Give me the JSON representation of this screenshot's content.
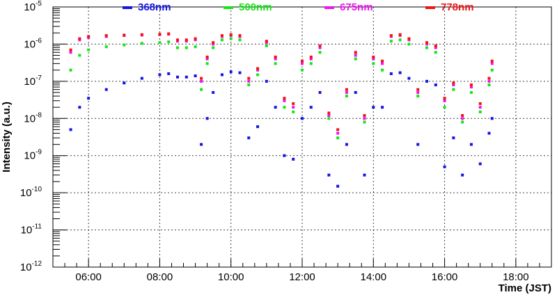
{
  "chart_data": {
    "type": "scatter",
    "title": "",
    "xlabel": "Time (JST)",
    "ylabel": "Intensity (a.u.)",
    "y_scale": "log",
    "xlim": [
      "05:00",
      "19:00"
    ],
    "ylim": [
      1e-12,
      1e-05
    ],
    "x_tick_labels": [
      "06:00",
      "08:00",
      "10:00",
      "12:00",
      "14:00",
      "16:00",
      "18:00"
    ],
    "y_tick_labels": [
      {
        "base": "10",
        "exp": "-12"
      },
      {
        "base": "10",
        "exp": "-11"
      },
      {
        "base": "10",
        "exp": "-10"
      },
      {
        "base": "10",
        "exp": "-9"
      },
      {
        "base": "10",
        "exp": "-8"
      },
      {
        "base": "10",
        "exp": "-7"
      },
      {
        "base": "10",
        "exp": "-6"
      },
      {
        "base": "10",
        "exp": "-5"
      }
    ],
    "grid": true,
    "legend_position": "top",
    "series": [
      {
        "name": "368nm",
        "color": "#1414e6",
        "x": [
          "05:30",
          "05:45",
          "06:00",
          "06:30",
          "07:00",
          "07:30",
          "08:00",
          "08:15",
          "08:30",
          "08:45",
          "09:00",
          "09:10",
          "09:20",
          "09:30",
          "09:45",
          "10:00",
          "10:15",
          "10:30",
          "10:45",
          "11:00",
          "11:15",
          "11:30",
          "11:45",
          "12:00",
          "12:15",
          "12:30",
          "12:45",
          "13:00",
          "13:15",
          "13:30",
          "13:45",
          "14:00",
          "14:15",
          "14:30",
          "14:45",
          "15:00",
          "15:15",
          "15:30",
          "15:45",
          "16:00",
          "16:15",
          "16:30",
          "16:45",
          "17:00",
          "17:15",
          "17:20"
        ],
        "y": [
          5e-09,
          2e-08,
          3.5e-08,
          6e-08,
          9e-08,
          1.2e-07,
          1.5e-07,
          1.6e-07,
          1.3e-07,
          1.3e-07,
          1.4e-07,
          2e-09,
          1e-08,
          5e-08,
          1.5e-07,
          1.8e-07,
          1.7e-07,
          3e-09,
          6e-09,
          1e-07,
          2e-08,
          1e-09,
          8e-10,
          1e-08,
          2e-08,
          5e-08,
          3e-10,
          1.5e-10,
          2e-09,
          5e-08,
          3e-10,
          2e-08,
          2e-08,
          1.6e-07,
          1.7e-07,
          1.2e-07,
          2e-09,
          1e-07,
          8e-08,
          5e-10,
          3e-09,
          3e-10,
          2e-09,
          6e-10,
          4e-09,
          1e-08
        ]
      },
      {
        "name": "500nm",
        "color": "#14e614",
        "x": [
          "05:30",
          "05:45",
          "06:00",
          "06:30",
          "07:00",
          "07:30",
          "08:00",
          "08:15",
          "08:30",
          "08:45",
          "09:00",
          "09:10",
          "09:20",
          "09:30",
          "09:45",
          "10:00",
          "10:15",
          "10:30",
          "10:45",
          "11:00",
          "11:15",
          "11:30",
          "11:45",
          "12:00",
          "12:15",
          "12:30",
          "12:45",
          "13:00",
          "13:15",
          "13:30",
          "13:45",
          "14:00",
          "14:15",
          "14:30",
          "14:45",
          "15:00",
          "15:15",
          "15:30",
          "15:45",
          "16:00",
          "16:15",
          "16:30",
          "16:45",
          "17:00",
          "17:15",
          "17:20"
        ],
        "y": [
          2e-07,
          5e-07,
          7e-07,
          8.5e-07,
          9.5e-07,
          1.05e-06,
          1.1e-06,
          1.15e-06,
          8e-07,
          8e-07,
          8.5e-07,
          6e-08,
          3e-07,
          8e-07,
          1.3e-06,
          1.4e-06,
          1.3e-06,
          8e-08,
          1.5e-07,
          9e-07,
          3e-07,
          2e-08,
          1.5e-08,
          2e-07,
          3e-07,
          6e-07,
          1e-08,
          3e-09,
          4e-08,
          4e-07,
          8e-09,
          3e-07,
          2e-07,
          1.2e-06,
          1.3e-06,
          1e-06,
          4e-08,
          8e-07,
          6e-07,
          2e-08,
          6e-08,
          8e-09,
          5e-08,
          1.5e-08,
          8e-08,
          2e-07
        ]
      },
      {
        "name": "675nm",
        "color": "#f014f0",
        "x": [
          "05:30",
          "05:45",
          "06:00",
          "06:30",
          "07:00",
          "07:30",
          "08:00",
          "08:15",
          "08:30",
          "08:45",
          "09:00",
          "09:10",
          "09:20",
          "09:30",
          "09:45",
          "10:00",
          "10:15",
          "10:30",
          "10:45",
          "11:00",
          "11:15",
          "11:30",
          "11:45",
          "12:00",
          "12:15",
          "12:30",
          "12:45",
          "13:00",
          "13:15",
          "13:30",
          "13:45",
          "14:00",
          "14:15",
          "14:30",
          "14:45",
          "15:00",
          "15:15",
          "15:30",
          "15:45",
          "16:00",
          "16:15",
          "16:30",
          "16:45",
          "17:00",
          "17:15",
          "17:20"
        ],
        "y": [
          6e-07,
          1.3e-06,
          1.5e-06,
          1.6e-06,
          1.7e-06,
          1.75e-06,
          1.8e-06,
          1.85e-06,
          1.2e-06,
          1.2e-06,
          1.3e-06,
          1e-07,
          4e-07,
          1e-06,
          1.6e-06,
          1.7e-06,
          1.6e-06,
          1e-07,
          2e-07,
          1.1e-06,
          4e-07,
          3e-08,
          2e-08,
          3e-07,
          4e-07,
          8e-07,
          1.2e-08,
          4e-09,
          5e-08,
          5e-07,
          1e-08,
          4e-07,
          3e-07,
          1.6e-06,
          1.7e-06,
          1.3e-06,
          5e-08,
          1e-06,
          8e-07,
          3e-08,
          8e-08,
          1e-08,
          7e-08,
          2e-08,
          1e-07,
          3e-07
        ]
      },
      {
        "name": "778nm",
        "color": "#f01414",
        "x": [
          "05:30",
          "05:45",
          "06:00",
          "06:30",
          "07:00",
          "07:30",
          "08:00",
          "08:15",
          "08:30",
          "08:45",
          "09:00",
          "09:10",
          "09:20",
          "09:30",
          "09:45",
          "10:00",
          "10:15",
          "10:30",
          "10:45",
          "11:00",
          "11:15",
          "11:30",
          "11:45",
          "12:00",
          "12:15",
          "12:30",
          "12:45",
          "13:00",
          "13:15",
          "13:30",
          "13:45",
          "14:00",
          "14:15",
          "14:30",
          "14:45",
          "15:00",
          "15:15",
          "15:30",
          "15:45",
          "16:00",
          "16:15",
          "16:30",
          "16:45",
          "17:00",
          "17:15",
          "17:20"
        ],
        "y": [
          7e-07,
          1.4e-06,
          1.6e-06,
          1.7e-06,
          1.75e-06,
          1.8e-06,
          1.85e-06,
          1.9e-06,
          1.3e-06,
          1.3e-06,
          1.4e-06,
          1.2e-07,
          4.5e-07,
          1.1e-06,
          1.7e-06,
          1.8e-06,
          1.7e-06,
          1.2e-07,
          2.2e-07,
          1.2e-06,
          4.5e-07,
          3.5e-08,
          2.5e-08,
          3.5e-07,
          4.5e-07,
          9e-07,
          1.4e-08,
          5e-09,
          6e-08,
          6e-07,
          1.2e-08,
          4.5e-07,
          3.5e-07,
          1.7e-06,
          1.8e-06,
          1.4e-06,
          6e-08,
          1.1e-06,
          9e-07,
          3.5e-08,
          9e-08,
          1.2e-08,
          8e-08,
          2.5e-08,
          1.2e-07,
          3.5e-07
        ]
      }
    ]
  }
}
